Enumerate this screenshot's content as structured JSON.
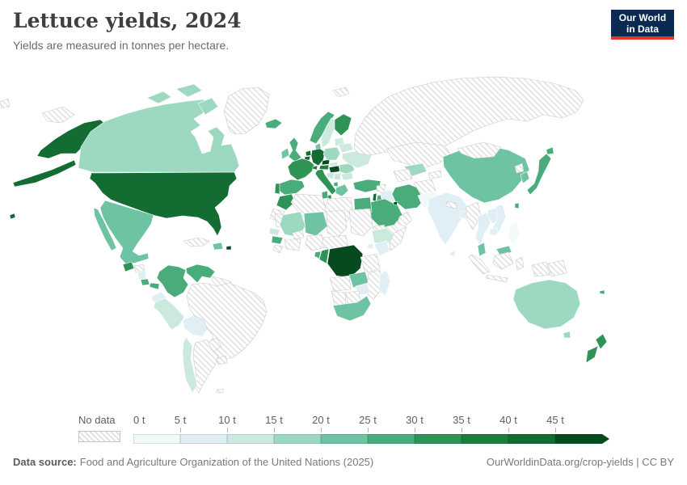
{
  "header": {
    "title": "Lettuce yields, 2024",
    "subtitle": "Yields are measured in tonnes per hectare.",
    "logo": {
      "line1": "Our World",
      "line2": "in Data",
      "bg": "#0b2a51",
      "accent": "#e0362c"
    }
  },
  "legend": {
    "no_data_label": "No data",
    "ticks": [
      "0 t",
      "5 t",
      "10 t",
      "15 t",
      "20 t",
      "25 t",
      "30 t",
      "35 t",
      "40 t",
      "45 t"
    ],
    "colors": [
      "#f2faf9",
      "#e0eff5",
      "#cbe9dc",
      "#9dd8c0",
      "#6ec3a3",
      "#4aac7a",
      "#2f9355",
      "#1d7e3c",
      "#136c31",
      "#084a20"
    ],
    "hatch_color": "#d9d9d9"
  },
  "footer": {
    "source_label": "Data source:",
    "source_text": "Food and Agriculture Organization of the United Nations (2025)",
    "right_text": "OurWorldinData.org/crop-yields | CC BY"
  },
  "chart_data": {
    "type": "choropleth",
    "title": "Lettuce yields, 2024",
    "unit": "tonnes per hectare",
    "year": 2024,
    "bin_size": 5,
    "bin_range": [
      0,
      45
    ],
    "last_bin_open_ended": true,
    "no_data_style": "diagonal-hatch",
    "entities": {
      "United States": 41,
      "Canada": 16,
      "Greenland": null,
      "Mexico": 22,
      "Guatemala": 31,
      "Honduras": null,
      "Nicaragua": 7,
      "Costa Rica": 27,
      "Panama": 27,
      "Cuba": null,
      "Dominican Republic": 22,
      "Puerto Rico": 47,
      "Colombia": 27,
      "Venezuela": 26,
      "Guyana": null,
      "Ecuador": 6,
      "Peru": 12,
      "Bolivia": 6,
      "Brazil": null,
      "Paraguay": null,
      "Uruguay": null,
      "Argentina": null,
      "Chile": 13,
      "Falkland Islands": null,
      "Iceland": 27,
      "Norway": 27,
      "Sweden": 13,
      "Finland": 31,
      "Lithuania": 13,
      "Denmark": 22,
      "United Kingdom": 28,
      "Ireland": 23,
      "Netherlands": 41,
      "Belgium": 41,
      "Germany": 41,
      "France": 31,
      "Spain": 28,
      "Portugal": 31,
      "Switzerland": 38,
      "Italy": 31,
      "Czechia": 46,
      "Austria": 38,
      "Poland": 17,
      "Slovakia": 13,
      "Hungary": 47,
      "Croatia": 12,
      "Serbia": 13,
      "Albania": 27,
      "Greece": 23,
      "Romania": 17,
      "Bulgaria": 12,
      "Ukraine": 13,
      "Belarus": 13,
      "Russia": null,
      "Svalbard": null,
      "Turkey": 28,
      "Syria": null,
      "Israel": 41,
      "Jordan": 27,
      "Iraq": 6,
      "Iran": 28,
      "Saudi Arabia": 28,
      "Kuwait": 46,
      "Oman": null,
      "Yemen": null,
      "Morocco": 31,
      "Western Sahara": null,
      "Algeria": null,
      "Tunisia": 26,
      "Libya": null,
      "Egypt": 27,
      "Mauritania": null,
      "Senegal": 12,
      "Guinea": 26,
      "Sierra Leone": null,
      "Mali": 17,
      "Burkina Faso": null,
      "Niger": 22,
      "Nigeria": null,
      "Ghana": null,
      "Chad": null,
      "Sudan": null,
      "Eritrea": null,
      "Ethiopia": 12,
      "Somalia": null,
      "Kenya": 7,
      "Uganda": 7,
      "Cameroon": null,
      "Democratic Republic of Congo": 47,
      "Congo": 31,
      "Gabon": 27,
      "Angola": null,
      "Zambia": 22,
      "Tanzania": null,
      "Mozambique": null,
      "Zimbabwe": 6,
      "Botswana": null,
      "Namibia": null,
      "South Africa": 22,
      "Madagascar": 7,
      "Kazakhstan": null,
      "Uzbekistan": 17,
      "Turkmenistan": null,
      "Afghanistan": null,
      "Tajikistan": null,
      "Pakistan": 4,
      "India": 6,
      "Nepal": null,
      "Bangladesh": 7,
      "Sri Lanka": 7,
      "China": 23,
      "Mongolia": null,
      "North Korea": null,
      "South Korea": 23,
      "Japan": 28,
      "Taiwan": 27,
      "Myanmar": null,
      "Thailand": 6,
      "Laos": 7,
      "Vietnam": 8,
      "Cambodia": 7,
      "Malaysia": 23,
      "Indonesia": null,
      "Philippines": 4,
      "Papua New Guinea": null,
      "Australia": 16,
      "New Zealand": 32,
      "New Caledonia": 27
    }
  }
}
